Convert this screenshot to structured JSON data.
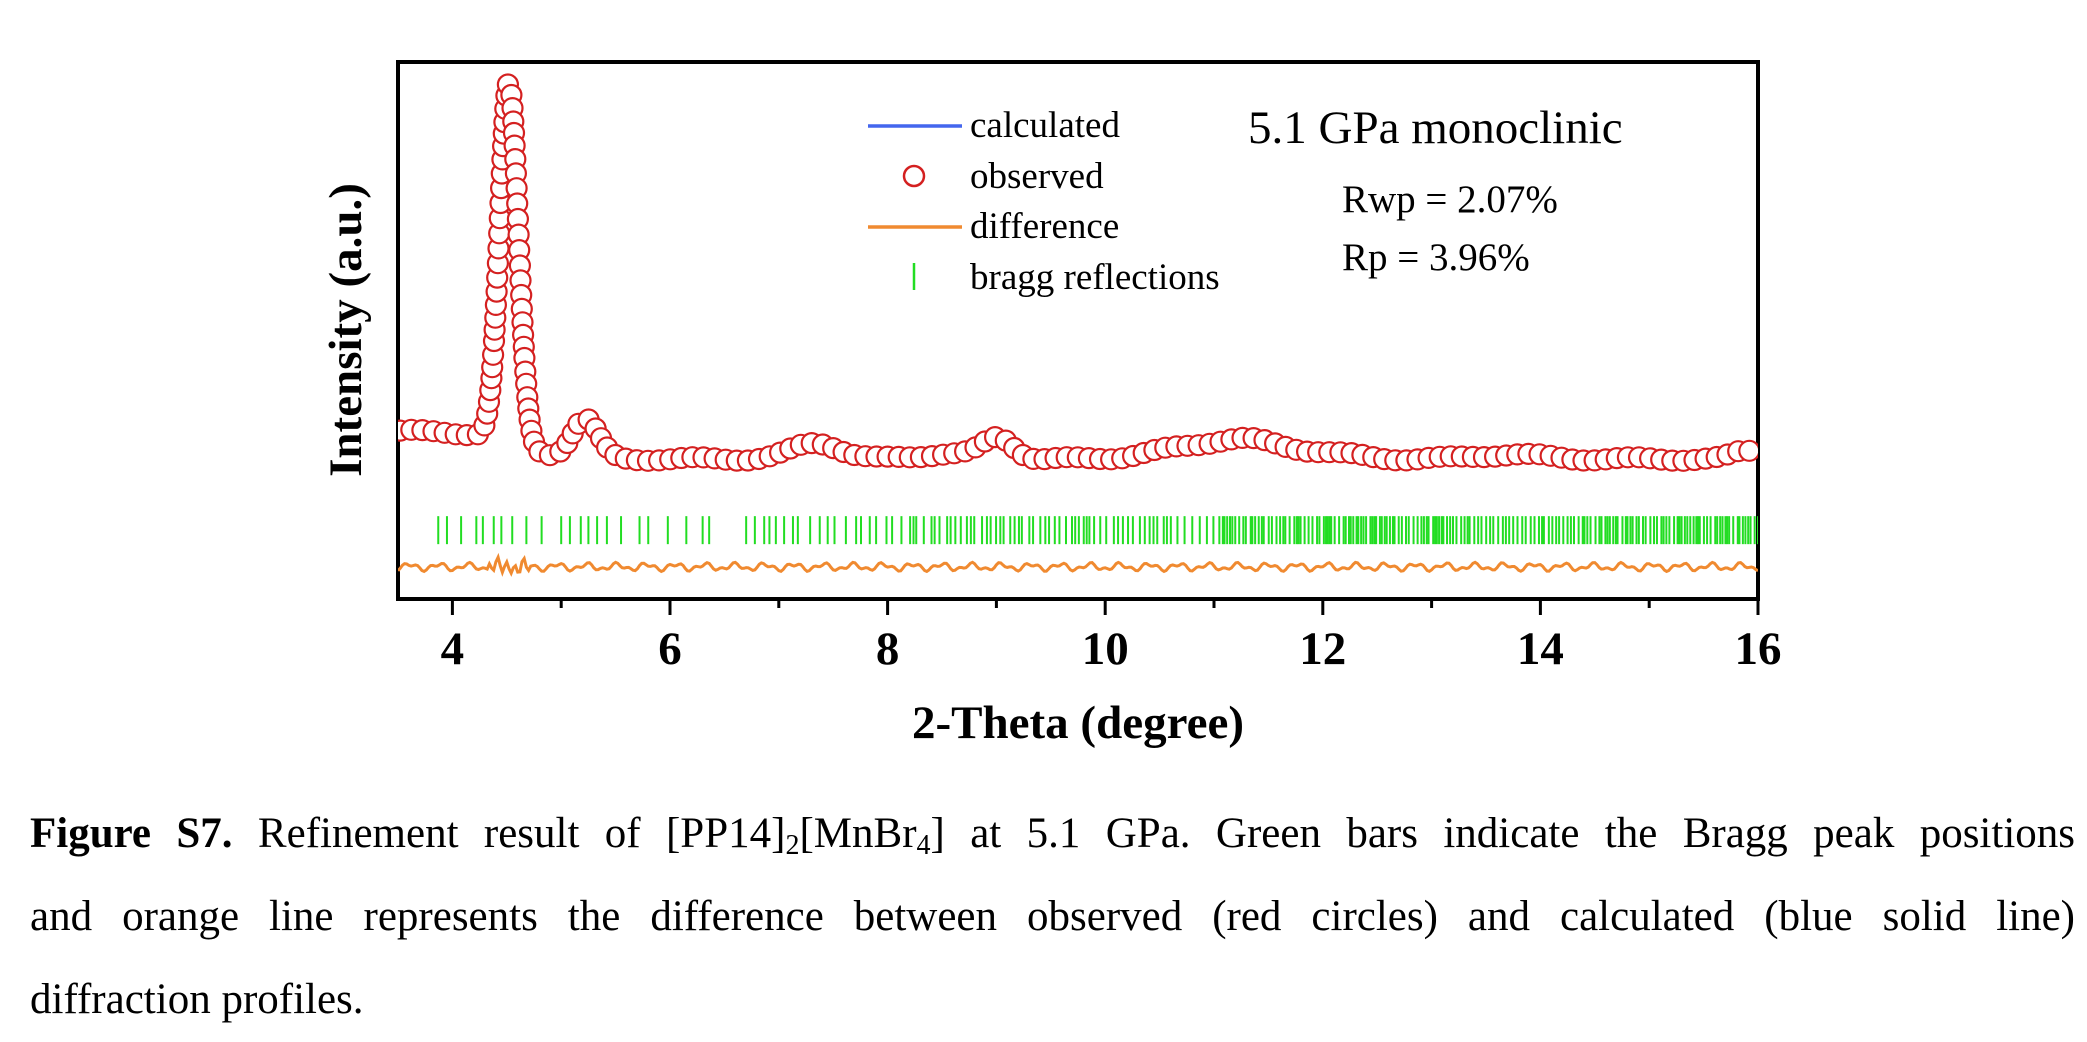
{
  "chart_data": {
    "type": "scatter",
    "title": "5.1 GPa monoclinic",
    "xlabel": "2-Theta (degree)",
    "ylabel": "Intensity (a.u.)",
    "xlim": [
      3.5,
      16
    ],
    "ylim": [
      -0.12,
      1.05
    ],
    "xticks": [
      "4",
      "6",
      "8",
      "10",
      "12",
      "14",
      "16"
    ],
    "grid": false,
    "legend_position": "top-center",
    "stats": [
      "Rwp = 2.07%",
      "Rp = 3.96%"
    ],
    "series": [
      {
        "name": "calculated",
        "color": "#4466ee",
        "style": "line"
      },
      {
        "name": "observed",
        "color": "#d42020",
        "style": "open-circles"
      },
      {
        "name": "difference",
        "color": "#f08a30",
        "style": "line"
      },
      {
        "name": "bragg reflections",
        "color": "#22dd22",
        "style": "ticks"
      }
    ],
    "profile_peaks": [
      {
        "center": 4.52,
        "height": 0.78,
        "width": 0.085
      },
      {
        "center": 5.22,
        "height": 0.085,
        "width": 0.12
      },
      {
        "center": 7.35,
        "height": 0.035,
        "width": 0.22
      },
      {
        "center": 8.55,
        "height": 0.012,
        "width": 0.25
      },
      {
        "center": 9.02,
        "height": 0.045,
        "width": 0.14
      },
      {
        "center": 10.6,
        "height": 0.015,
        "width": 0.3
      },
      {
        "center": 11.25,
        "height": 0.042,
        "width": 0.35
      },
      {
        "center": 12.0,
        "height": 0.012,
        "width": 0.3
      },
      {
        "center": 13.7,
        "height": 0.01,
        "width": 0.3
      },
      {
        "center": 15.9,
        "height": 0.018,
        "width": 0.12
      }
    ],
    "profile_background": {
      "low_x_level": 0.245,
      "low_x_end": 4.6,
      "high_x_level": 0.185,
      "transition_width": 0.18
    },
    "bragg_positions_sparse": [
      3.87,
      3.95,
      4.08,
      4.22,
      4.28,
      4.38,
      4.45,
      4.55,
      4.68,
      4.82,
      5.0,
      5.08,
      5.18,
      5.25,
      5.33,
      5.42,
      5.55,
      5.72,
      5.8,
      5.98,
      6.15,
      6.3,
      6.36
    ],
    "bragg_dense_start": 6.7,
    "bragg_dense_end": 16.0,
    "bragg_y": 0.03,
    "difference_y": -0.05
  },
  "caption": {
    "label": "Figure S7.",
    "line1_pre": " Refinement result of [PP14]",
    "sub1": "2",
    "mid1": "[MnBr",
    "sub2": "4",
    "line1_post": "] at 5.1 GPa. Green bars indicate the Bragg peak positions",
    "line2": "and orange line represents the difference between observed (red circles) and calculated (blue solid line)",
    "line3": "diffraction profiles."
  }
}
